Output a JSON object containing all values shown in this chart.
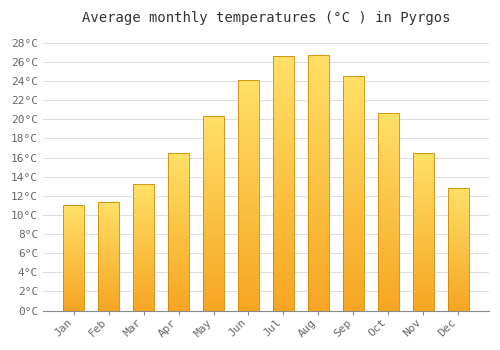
{
  "title": "Average monthly temperatures (°C ) in Pyrgos",
  "months": [
    "Jan",
    "Feb",
    "Mar",
    "Apr",
    "May",
    "Jun",
    "Jul",
    "Aug",
    "Sep",
    "Oct",
    "Nov",
    "Dec"
  ],
  "temperatures": [
    11.0,
    11.3,
    13.2,
    16.5,
    20.3,
    24.1,
    26.6,
    26.7,
    24.5,
    20.7,
    16.5,
    12.8
  ],
  "bar_color_bottom": "#F5A623",
  "bar_color_top": "#FFD966",
  "bar_edge_color": "#CC8800",
  "ylim": [
    0,
    29
  ],
  "yticks": [
    0,
    2,
    4,
    6,
    8,
    10,
    12,
    14,
    16,
    18,
    20,
    22,
    24,
    26,
    28
  ],
  "ytick_labels": [
    "0°C",
    "2°C",
    "4°C",
    "6°C",
    "8°C",
    "10°C",
    "12°C",
    "14°C",
    "16°C",
    "18°C",
    "20°C",
    "22°C",
    "24°C",
    "26°C",
    "28°C"
  ],
  "background_color": "#FFFFFF",
  "grid_color": "#DDDDDD",
  "title_fontsize": 10,
  "tick_fontsize": 8,
  "font_family": "monospace",
  "bar_width": 0.6
}
